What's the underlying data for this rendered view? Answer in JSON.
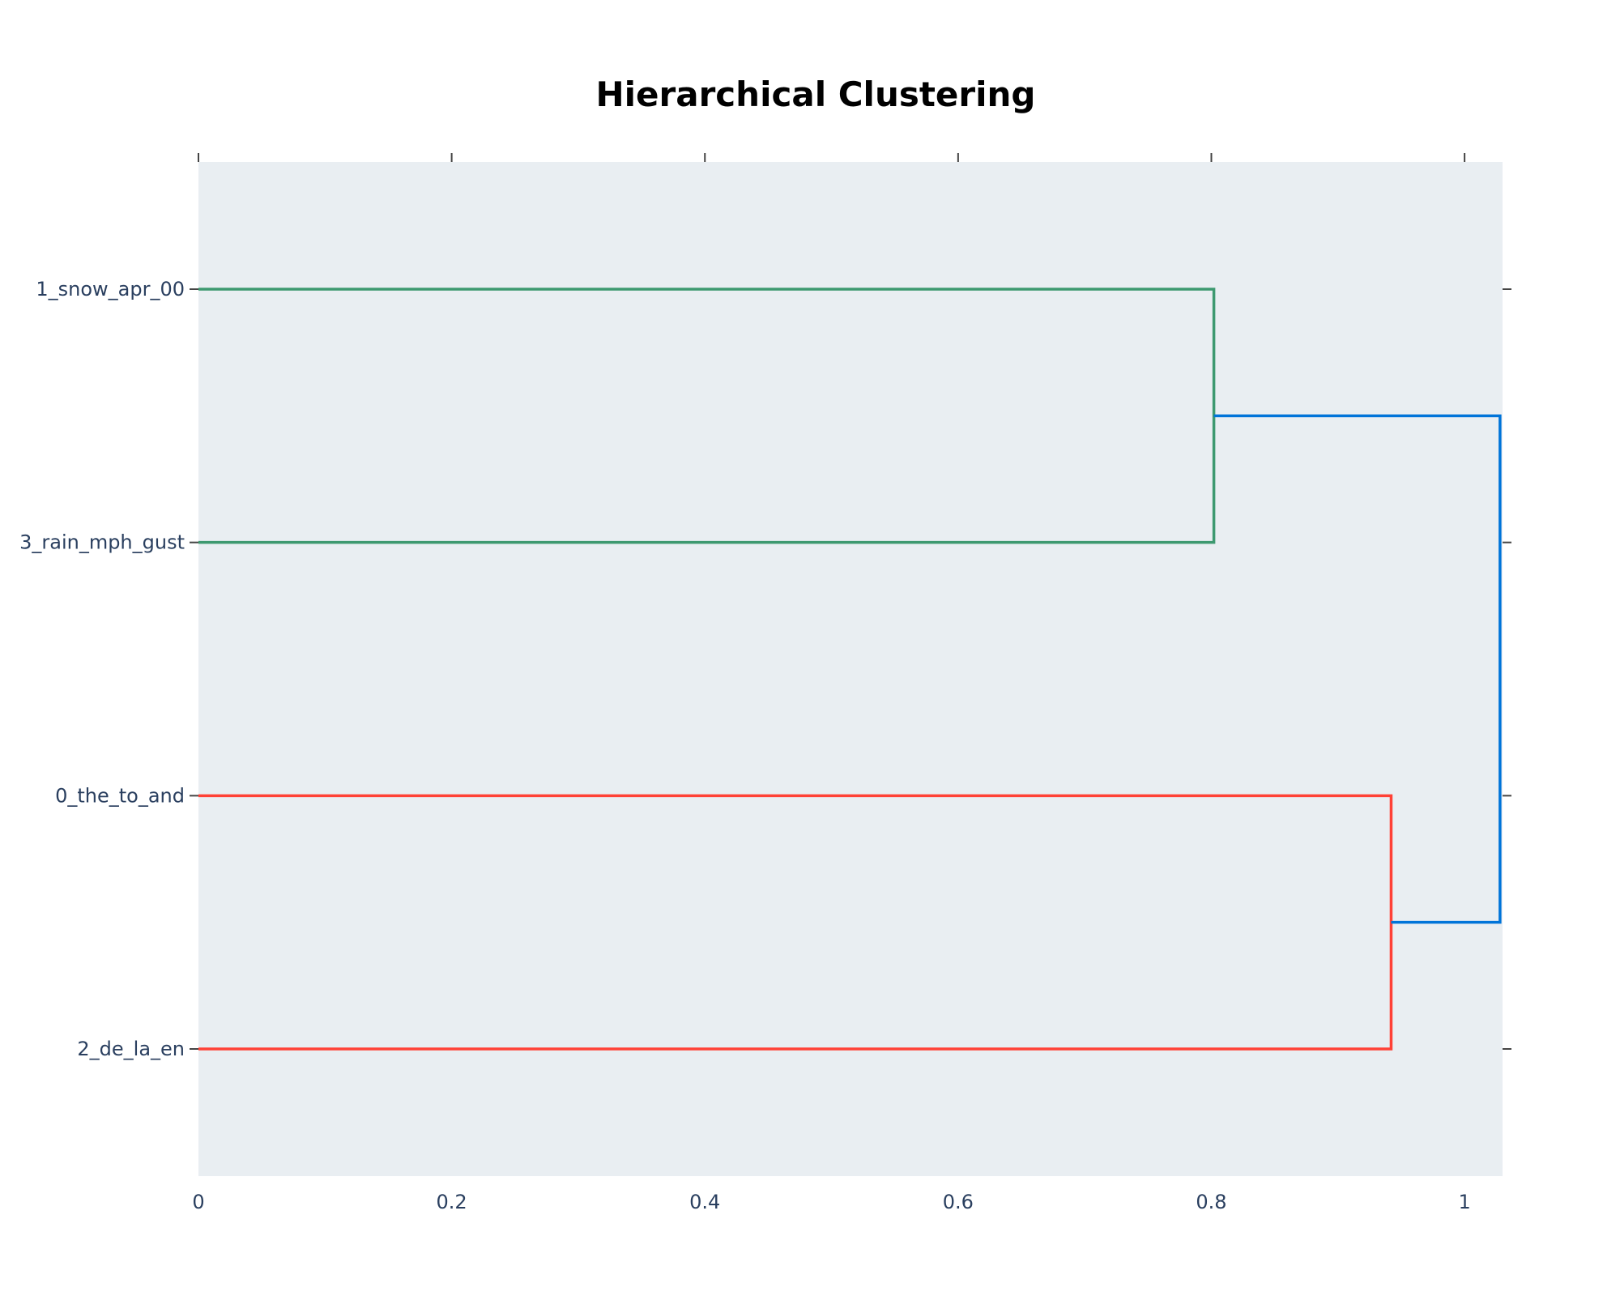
{
  "chart_data": {
    "type": "dendrogram",
    "title": "Hierarchical Clustering",
    "orientation": "horizontal",
    "xlim": [
      0,
      1.03
    ],
    "x_ticks": [
      0,
      0.2,
      0.4,
      0.6,
      0.8,
      1
    ],
    "x_tick_labels": [
      "0",
      "0.2",
      "0.4",
      "0.6",
      "0.8",
      "1"
    ],
    "leaves": [
      "1_snow_apr_00",
      "3_rain_mph_gust",
      "0_the_to_and",
      "2_de_la_en"
    ],
    "merges": [
      {
        "children": [
          "1_snow_apr_00",
          "3_rain_mph_gust"
        ],
        "distance": 0.802,
        "color": "#3d9970"
      },
      {
        "children": [
          "0_the_to_and",
          "2_de_la_en"
        ],
        "distance": 0.942,
        "color": "#ff4136"
      },
      {
        "children": [
          "cluster_1",
          "cluster_2"
        ],
        "distance": 1.028,
        "color": "#0074d9"
      }
    ],
    "plot_background": "#e9eef2",
    "grid": false
  }
}
